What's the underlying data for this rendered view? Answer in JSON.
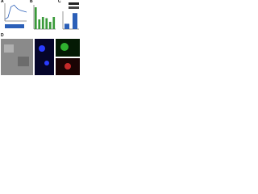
{
  "panels": [
    {
      "label": "A"
    },
    {
      "label": "B"
    },
    {
      "label": "C"
    },
    {
      "label": "D"
    }
  ],
  "chart_data": [
    {
      "type": "line",
      "x": [
        0,
        1,
        2,
        3,
        4,
        5,
        6,
        7
      ],
      "values": [
        0.1,
        0.2,
        0.8,
        0.9,
        0.7,
        0.6,
        0.55,
        0.5
      ],
      "color": "#2b5fb8",
      "xlim": [
        0,
        7
      ],
      "ylim": [
        0,
        1
      ]
    },
    {
      "type": "bar",
      "categories": [
        null,
        null,
        null,
        null,
        null,
        null
      ],
      "values": [
        0.9,
        0.4,
        0.5,
        0.45,
        0.3,
        0.5
      ],
      "color": "#3a9a3a",
      "ylim": [
        0,
        1
      ]
    },
    {
      "type": "bar",
      "categories": [
        null,
        null
      ],
      "values": [
        0.3,
        0.9
      ],
      "color": "#2b5fb8",
      "ylim": [
        0,
        1
      ]
    }
  ]
}
